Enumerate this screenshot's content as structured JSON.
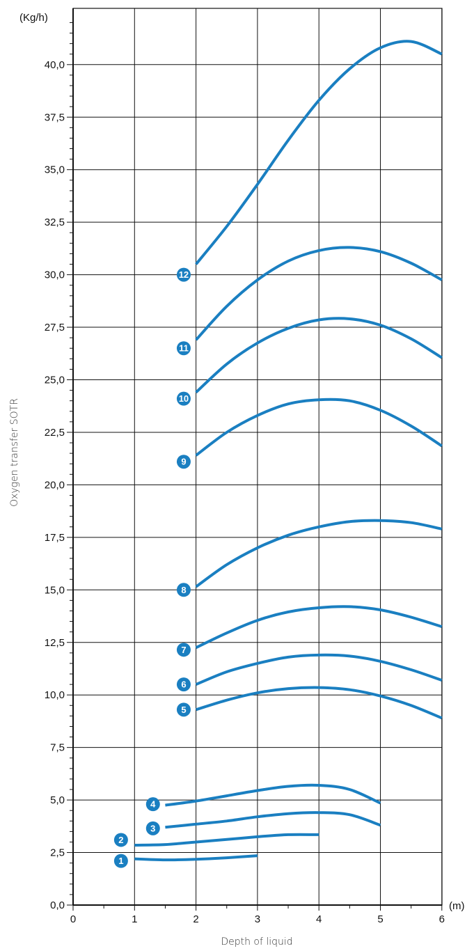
{
  "chart_data": {
    "type": "line",
    "xlabel": "Depth of liquid",
    "ylabel": "Oxygen transfer SOTR",
    "x_unit": "(m)",
    "y_unit": "(Kg/h)",
    "xlim": [
      0,
      6
    ],
    "ylim": [
      0,
      42
    ],
    "x_ticks": [
      "0",
      "1",
      "2",
      "3",
      "4",
      "5",
      "6"
    ],
    "y_ticks": [
      "0,0",
      "2,5",
      "5,0",
      "7,5",
      "10,0",
      "12,5",
      "15,0",
      "17,5",
      "20,0",
      "22,5",
      "25,0",
      "27,5",
      "30,0",
      "32,5",
      "35,0",
      "37,5",
      "40,0"
    ],
    "grid": true,
    "line_color": "#1a7fc1",
    "series": [
      {
        "name": "1",
        "label_pos": [
          0.78,
          2.1
        ],
        "x": [
          1,
          1.5,
          2,
          2.5,
          3
        ],
        "y": [
          2.2,
          2.15,
          2.18,
          2.25,
          2.35
        ]
      },
      {
        "name": "2",
        "label_pos": [
          0.78,
          3.1
        ],
        "x": [
          1,
          1.5,
          2,
          2.5,
          3,
          3.5,
          4
        ],
        "y": [
          2.85,
          2.88,
          3.0,
          3.12,
          3.25,
          3.35,
          3.35
        ]
      },
      {
        "name": "3",
        "label_pos": [
          1.3,
          3.65
        ],
        "x": [
          1.5,
          2,
          2.5,
          3,
          3.5,
          4,
          4.5,
          5
        ],
        "y": [
          3.7,
          3.85,
          4.0,
          4.2,
          4.35,
          4.4,
          4.3,
          3.8
        ]
      },
      {
        "name": "4",
        "label_pos": [
          1.3,
          4.8
        ],
        "x": [
          1.5,
          2,
          2.5,
          3,
          3.5,
          4,
          4.5,
          5
        ],
        "y": [
          4.75,
          4.95,
          5.2,
          5.45,
          5.65,
          5.7,
          5.5,
          4.85
        ]
      },
      {
        "name": "5",
        "label_pos": [
          1.8,
          9.3
        ],
        "x": [
          2,
          2.5,
          3,
          3.5,
          4,
          4.5,
          5,
          5.5,
          6
        ],
        "y": [
          9.3,
          9.75,
          10.1,
          10.3,
          10.35,
          10.25,
          9.95,
          9.5,
          8.9
        ]
      },
      {
        "name": "6",
        "label_pos": [
          1.8,
          10.5
        ],
        "x": [
          2,
          2.5,
          3,
          3.5,
          4,
          4.5,
          5,
          5.5,
          6
        ],
        "y": [
          10.5,
          11.1,
          11.5,
          11.8,
          11.9,
          11.85,
          11.6,
          11.2,
          10.7
        ]
      },
      {
        "name": "7",
        "label_pos": [
          1.8,
          12.15
        ],
        "x": [
          2,
          2.5,
          3,
          3.5,
          4,
          4.5,
          5,
          5.5,
          6
        ],
        "y": [
          12.25,
          12.95,
          13.55,
          13.95,
          14.15,
          14.2,
          14.05,
          13.7,
          13.25
        ]
      },
      {
        "name": "8",
        "label_pos": [
          1.8,
          15.0
        ],
        "x": [
          2,
          2.5,
          3,
          3.5,
          4,
          4.5,
          5,
          5.5,
          6
        ],
        "y": [
          15.15,
          16.2,
          17.0,
          17.6,
          18.0,
          18.25,
          18.3,
          18.2,
          17.9
        ]
      },
      {
        "name": "9",
        "label_pos": [
          1.8,
          21.1
        ],
        "x": [
          2,
          2.5,
          3,
          3.5,
          4,
          4.5,
          5,
          5.5,
          6
        ],
        "y": [
          21.4,
          22.5,
          23.3,
          23.85,
          24.05,
          24.0,
          23.55,
          22.8,
          21.85
        ]
      },
      {
        "name": "10",
        "label_pos": [
          1.8,
          24.1
        ],
        "x": [
          2,
          2.5,
          3,
          3.5,
          4,
          4.5,
          5,
          5.5,
          6
        ],
        "y": [
          24.4,
          25.75,
          26.75,
          27.45,
          27.85,
          27.9,
          27.6,
          26.95,
          26.05
        ]
      },
      {
        "name": "11",
        "label_pos": [
          1.8,
          26.5
        ],
        "x": [
          2,
          2.5,
          3,
          3.5,
          4,
          4.5,
          5,
          5.5,
          6
        ],
        "y": [
          26.9,
          28.5,
          29.75,
          30.65,
          31.15,
          31.3,
          31.1,
          30.55,
          29.75
        ]
      },
      {
        "name": "12",
        "label_pos": [
          1.8,
          30.0
        ],
        "x": [
          2,
          2.5,
          3,
          3.5,
          4,
          4.5,
          5,
          5.5,
          6
        ],
        "y": [
          30.5,
          32.3,
          34.3,
          36.4,
          38.3,
          39.8,
          40.8,
          41.1,
          40.5
        ]
      }
    ]
  }
}
